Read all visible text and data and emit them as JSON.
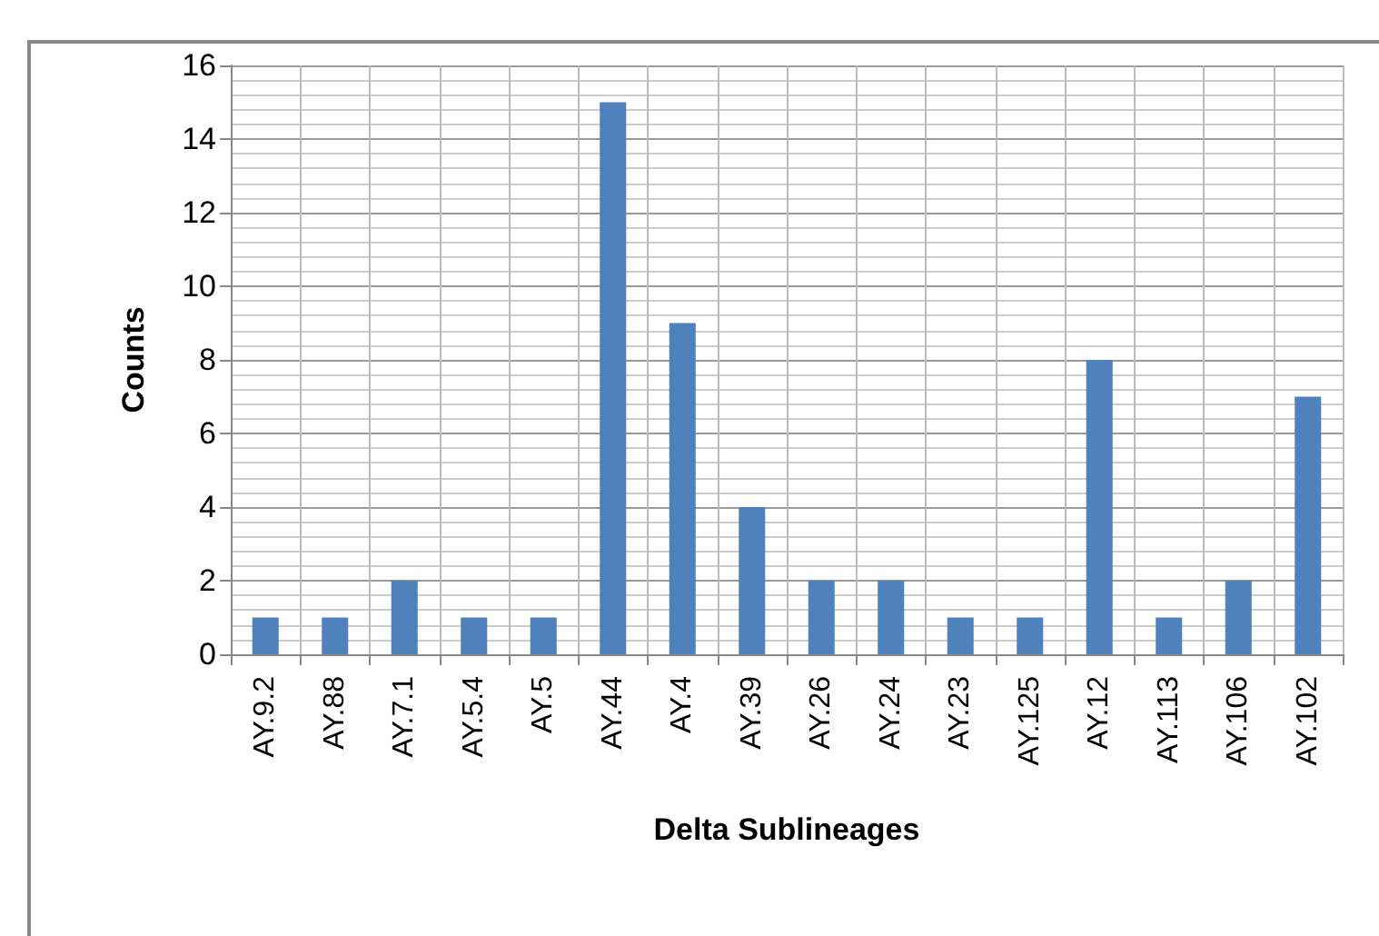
{
  "chart_data": {
    "type": "bar",
    "xlabel": "Delta Sublineages",
    "ylabel": "Counts",
    "categories": [
      "AY.9.2",
      "AY.88",
      "AY.7.1",
      "AY.5.4",
      "AY.5",
      "AY.44",
      "AY.4",
      "AY.39",
      "AY.26",
      "AY.24",
      "AY.23",
      "AY.125",
      "AY.12",
      "AY.113",
      "AY.106",
      "AY.102"
    ],
    "values": [
      1,
      1,
      2,
      1,
      1,
      15,
      9,
      4,
      2,
      2,
      1,
      1,
      8,
      1,
      2,
      7
    ],
    "color": "#4f81bd",
    "ylim": [
      0,
      16
    ],
    "yticks": [
      0,
      2,
      4,
      6,
      8,
      10,
      12,
      14,
      16
    ],
    "grid": true
  }
}
